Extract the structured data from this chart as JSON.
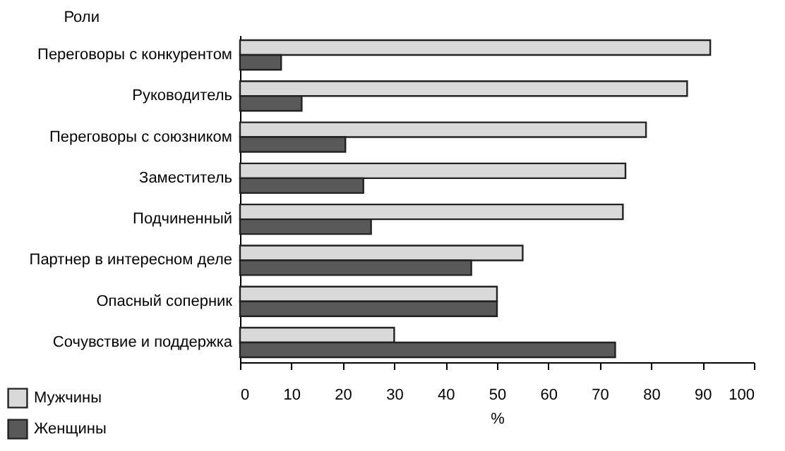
{
  "chart_data": {
    "type": "bar",
    "orientation": "horizontal",
    "ylabel": "Роли",
    "xlabel": "%",
    "categories": [
      "Переговоры с конкурентом",
      "Руководитель",
      "Переговоры с  союзником",
      "Заместитель",
      "Подчиненный",
      "Партнер в интересном деле",
      "Опасный соперник",
      "Сочувствие и поддержка"
    ],
    "series": [
      {
        "name": "Мужчины",
        "color": "#d9d9d9",
        "values": [
          91.5,
          87,
          79,
          75,
          74.5,
          55,
          50,
          30
        ]
      },
      {
        "name": "Женщины",
        "color": "#595959",
        "values": [
          8,
          12,
          20.5,
          24,
          25.5,
          45,
          50,
          73
        ]
      }
    ],
    "xlim": [
      0,
      100
    ],
    "xticks": [
      0,
      10,
      20,
      30,
      40,
      50,
      60,
      70,
      80,
      90,
      100
    ],
    "grid": false,
    "legend": "bottom left"
  }
}
